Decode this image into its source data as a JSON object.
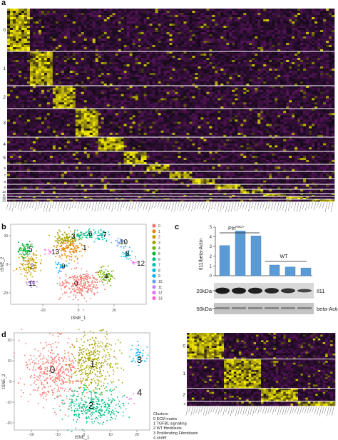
{
  "panels": {
    "a": {
      "letter": "a",
      "row_labels": [
        "0",
        "1",
        "2",
        "3",
        "4",
        "5",
        "6",
        "7",
        "8",
        "9",
        "10",
        "11",
        "12",
        "13"
      ]
    },
    "b": {
      "letter": "b",
      "xlabel": "tSNE_1",
      "ylabel": "tSNE_2",
      "x_ticks": [
        "-20",
        "0",
        "20"
      ],
      "y_ticks": [
        "20",
        "0",
        "-20"
      ],
      "cluster_labels": [
        "0",
        "1",
        "2",
        "3",
        "4",
        "5",
        "6",
        "7",
        "8",
        "9",
        "10",
        "11",
        "12",
        "13"
      ],
      "legend": [
        "0",
        "1",
        "2",
        "3",
        "4",
        "5",
        "6",
        "7",
        "8",
        "9",
        "10",
        "11",
        "12",
        "13"
      ],
      "colors": [
        "#f8766d",
        "#e58700",
        "#c99800",
        "#a3a500",
        "#6bb100",
        "#00ba38",
        "#00bf7d",
        "#00c0af",
        "#00bcd8",
        "#00b0f6",
        "#619cff",
        "#b983ff",
        "#e76bf3",
        "#fd61d1"
      ]
    },
    "c": {
      "letter": "c",
      "ylabel": "Il11/beta-Actin",
      "group_pln": "Pln",
      "group_pln_sup": "R9C/+",
      "group_wt": "WT",
      "bar_values": [
        3.1,
        4.6,
        4.1,
        1.1,
        0.9,
        0.8
      ],
      "y_ticks": [
        "0",
        "1",
        "2",
        "3",
        "4",
        "5"
      ],
      "ylim": [
        0,
        5
      ],
      "blot_marker_1": "20kDa",
      "blot_marker_2": "50kDa",
      "blot_label_1": "Il11",
      "blot_label_2": "beta-Actin",
      "bar_color": "#5b9bd5"
    },
    "d": {
      "letter": "d",
      "xlabel": "tSNE_1",
      "ylabel": "tSNE_2",
      "x_ticks": [
        "-20",
        "-10",
        "0",
        "10",
        "20"
      ],
      "y_ticks": [
        "20",
        "10",
        "0",
        "-10",
        "-20"
      ],
      "cluster_labels": [
        "0",
        "1",
        "2",
        "3",
        "4"
      ],
      "colors": [
        "#f8766d",
        "#a3a500",
        "#00bf7d",
        "#00b0f6",
        "#e76bf3"
      ],
      "legend_title": "Clusters:",
      "legend_items": [
        "0 ECM matrix",
        "1 TGFB1 signalling",
        "2 WT fibroblasts",
        "3 Proliferating Fibroblasts",
        "4 undef."
      ],
      "heatmap_row_labels": [
        "0",
        "1",
        "2",
        "3"
      ]
    }
  }
}
